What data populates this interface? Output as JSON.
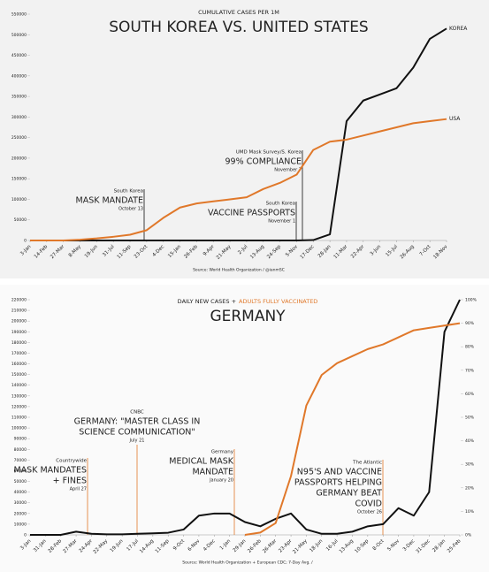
{
  "chart_data": [
    {
      "type": "line",
      "subtitle": "CUMULATIVE CASES PER 1M",
      "title": "SOUTH KOREA VS. UNITED STATES",
      "source": "Source: World Health Organization / @ianmSC",
      "categories": [
        "3-Jan",
        "14-Feb",
        "27-Mar",
        "8-May",
        "19-Jun",
        "31-Jul",
        "11-Sep",
        "23-Oct",
        "4-Dec",
        "15-Jan",
        "26-Feb",
        "9-Apr",
        "21-May",
        "2-Jul",
        "13-Aug",
        "24-Sep",
        "5-Nov",
        "17-Dec",
        "28-Jan",
        "11-Mar",
        "22-Apr",
        "3-Jun",
        "15-Jul",
        "26-Aug",
        "7-Oct",
        "18-Nov"
      ],
      "series": [
        {
          "name": "KOREA",
          "color": "#111111",
          "values": [
            0,
            0,
            0,
            0,
            0,
            0,
            0,
            0,
            0,
            0,
            0,
            0,
            0,
            0,
            0,
            0,
            0,
            1000,
            15000,
            290000,
            340000,
            355000,
            370000,
            420000,
            490000,
            515000
          ]
        },
        {
          "name": "USA",
          "color": "#e0782a",
          "values": [
            0,
            0,
            0,
            2000,
            5000,
            9000,
            14000,
            25000,
            55000,
            80000,
            90000,
            95000,
            100000,
            105000,
            125000,
            140000,
            160000,
            220000,
            240000,
            245000,
            255000,
            265000,
            275000,
            285000,
            290000,
            295000
          ]
        }
      ],
      "ylim": [
        0,
        550000
      ],
      "yticks": [
        0,
        50000,
        100000,
        150000,
        200000,
        250000,
        300000,
        350000,
        400000,
        450000,
        500000,
        550000
      ],
      "annotations": [
        {
          "kicker": "South Korea",
          "headline": [
            "MASK MANDATE"
          ],
          "date": "October 13"
        },
        {
          "kicker": "UMD Mask Survey/S. Korea",
          "headline": [
            "99% COMPLIANCE"
          ],
          "date": "November 7"
        },
        {
          "kicker": "South Korea",
          "headline": [
            "VACCINE PASSPORTS"
          ],
          "date": "November 1"
        }
      ]
    },
    {
      "type": "line",
      "subtitle": [
        "DAILY NEW CASES +",
        "ADULTS FULLY VACCINATED"
      ],
      "title": "GERMANY",
      "source": "Source: World Health Organization + European CDC; 7-Day Avg. /",
      "categories": [
        "3-Jan",
        "31-Jan",
        "28-Feb",
        "27-Mar",
        "24-Apr",
        "22-May",
        "19-Jun",
        "17-Jul",
        "14-Aug",
        "11-Sep",
        "9-Oct",
        "6-Nov",
        "4-Dec",
        "1-Jan",
        "29-Jan",
        "26-Feb",
        "26-Mar",
        "23-Apr",
        "21-May",
        "18-Jun",
        "16-Jul",
        "13-Aug",
        "10-Sep",
        "8-Oct",
        "5-Nov",
        "3-Dec",
        "31-Dec",
        "28-Jan",
        "25-Feb"
      ],
      "series": [
        {
          "name": "DAILY NEW CASES",
          "color": "#111111",
          "values": [
            0,
            0,
            0,
            3000,
            1000,
            500,
            500,
            1000,
            1500,
            2000,
            5000,
            18000,
            20000,
            20000,
            12000,
            8000,
            15000,
            20000,
            5000,
            1000,
            1000,
            3000,
            8000,
            10000,
            25000,
            18000,
            40000,
            190000,
            220000
          ]
        },
        {
          "name": "ADULTS FULLY VACCINATED",
          "color": "#e0782a",
          "axis": "y2",
          "values": [
            null,
            null,
            null,
            null,
            null,
            null,
            null,
            null,
            null,
            null,
            null,
            null,
            null,
            null,
            0,
            1,
            5,
            25,
            55,
            68,
            73,
            76,
            79,
            81,
            84,
            87,
            88,
            89,
            90
          ]
        }
      ],
      "ylim": [
        0,
        220000
      ],
      "yticks": [
        0,
        10000,
        20000,
        30000,
        40000,
        50000,
        60000,
        70000,
        80000,
        90000,
        100000,
        110000,
        120000,
        130000,
        140000,
        150000,
        160000,
        170000,
        180000,
        190000,
        200000,
        210000,
        220000
      ],
      "y2lim": [
        0,
        100
      ],
      "y2ticks": [
        {
          "value": 0,
          "label": "0%"
        },
        {
          "value": 10,
          "label": "10%"
        },
        {
          "value": 20,
          "label": "20%"
        },
        {
          "value": 30,
          "label": "30%"
        },
        {
          "value": 40,
          "label": "40%"
        },
        {
          "value": 50,
          "label": "50%"
        },
        {
          "value": 60,
          "label": "60%"
        },
        {
          "value": 70,
          "label": "70%"
        },
        {
          "value": 80,
          "label": "80%"
        },
        {
          "value": 90,
          "label": "90%"
        },
        {
          "value": 100,
          "label": "100%"
        }
      ],
      "annotations": [
        {
          "kicker": "Countrywide",
          "headline": [
            "MASK MANDATES",
            "+ FINES"
          ],
          "date": "April 27"
        },
        {
          "kicker": "CNBC",
          "headline": [
            "GERMANY: \"MASTER CLASS IN",
            "SCIENCE COMMUNICATION\""
          ],
          "date": "July 21"
        },
        {
          "kicker": "Germany",
          "headline": [
            "MEDICAL MASK",
            "MANDATE"
          ],
          "date": "January 20"
        },
        {
          "kicker": "The Atlantic",
          "headline": [
            "N95'S AND VACCINE",
            "PASSPORTS HELPING",
            "GERMANY BEAT",
            "COVID"
          ],
          "date": "October 26"
        }
      ]
    }
  ]
}
